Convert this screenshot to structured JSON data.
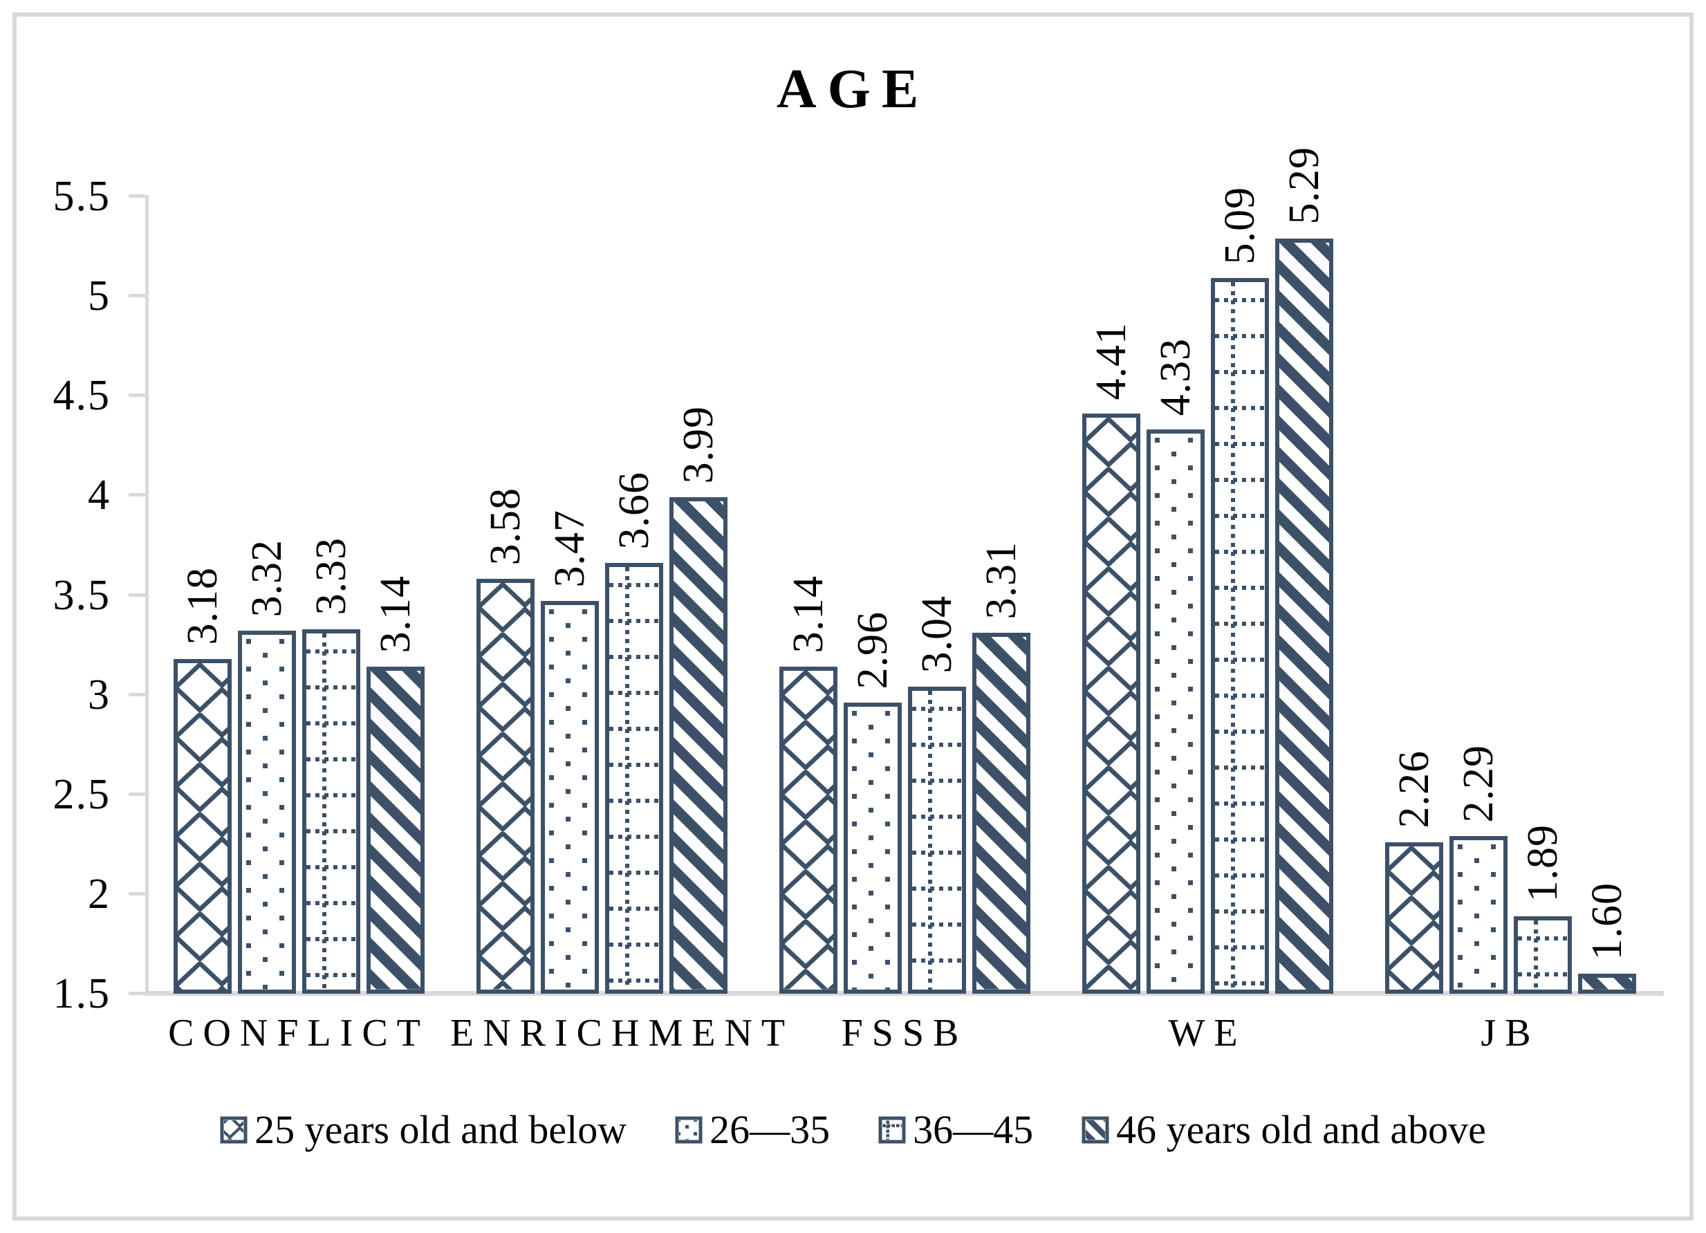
{
  "title": "AGE",
  "colors": {
    "bar_accent": "#3C5168",
    "axis_gray": "#D9D9D9",
    "text": "#000000",
    "background": "#FFFFFF"
  },
  "chart_data": {
    "type": "bar",
    "title": "AGE",
    "categories": [
      "CONFLICT",
      "ENRICHMENT",
      "FSSB",
      "WE",
      "JB"
    ],
    "series": [
      {
        "name": "25 years old and below",
        "pattern": "shingle-diagonal-lattice",
        "values": [
          3.18,
          3.58,
          3.14,
          4.41,
          2.26
        ],
        "labels": [
          "3.18",
          "3.58",
          "3.14",
          "4.41",
          "2.26"
        ]
      },
      {
        "name": "26—35",
        "pattern": "sparse-dots",
        "values": [
          3.32,
          3.47,
          2.96,
          4.33,
          2.29
        ],
        "labels": [
          "3.32",
          "3.47",
          "2.96",
          "4.33",
          "2.29"
        ]
      },
      {
        "name": "36—45",
        "pattern": "dotted-grid",
        "values": [
          3.33,
          3.66,
          3.04,
          5.09,
          1.89
        ],
        "labels": [
          "3.33",
          "3.66",
          "3.04",
          "5.09",
          "1.89"
        ]
      },
      {
        "name": "46 years old and above",
        "pattern": "wide-downward-diagonal",
        "values": [
          3.14,
          3.99,
          3.31,
          5.29,
          1.6
        ],
        "labels": [
          "3.14",
          "3.99",
          "3.31",
          "5.29",
          "1.60"
        ]
      }
    ],
    "ylim": [
      1.5,
      5.5
    ],
    "ytick_step": 0.5,
    "ytick_labels": [
      "5.5",
      "5",
      "4.5",
      "4",
      "3.5",
      "3",
      "2.5",
      "2",
      "1.5"
    ],
    "value_labels_rotated_degrees": 90,
    "grid": false,
    "legend_position": "bottom"
  }
}
